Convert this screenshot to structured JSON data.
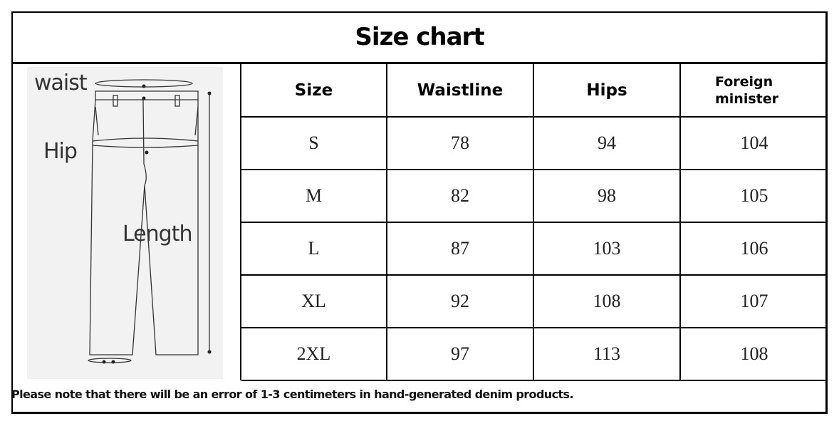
{
  "title": "Size chart",
  "diagram": {
    "labels": {
      "waist": "waist",
      "hip": "Hip",
      "length": "Length"
    }
  },
  "table": {
    "headers": [
      "Size",
      "Waistline",
      "Hips",
      "Foreign minister"
    ],
    "rows": [
      [
        "S",
        "78",
        "94",
        "104"
      ],
      [
        "M",
        "82",
        "98",
        "105"
      ],
      [
        "L",
        "87",
        "103",
        "106"
      ],
      [
        "XL",
        "92",
        "108",
        "107"
      ],
      [
        "2XL",
        "97",
        "113",
        "108"
      ]
    ]
  },
  "note": "Please note that there will be an error of 1-3 centimeters in hand-generated denim products."
}
